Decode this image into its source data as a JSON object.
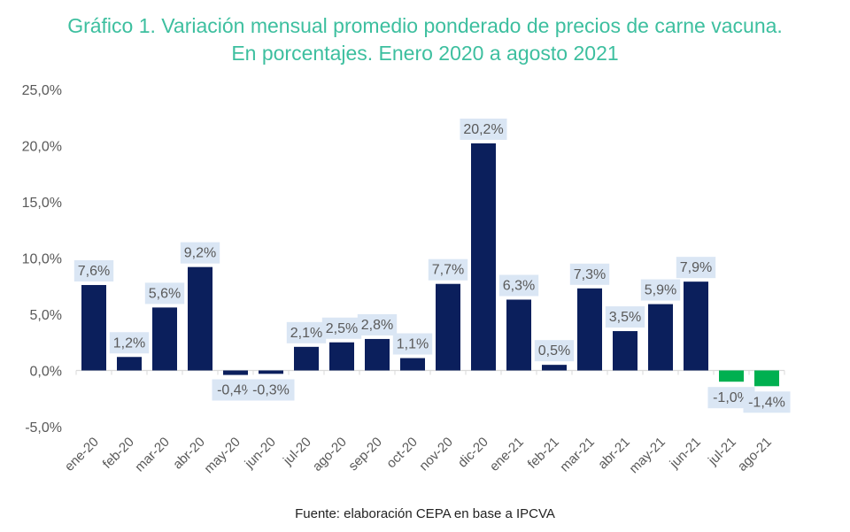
{
  "chart_data": {
    "type": "bar",
    "title": "Gráfico 1. Variación mensual promedio ponderado de precios de carne vacuna.",
    "subtitle": "En porcentajes. Enero 2020 a agosto 2021",
    "source": "Fuente: elaboración CEPA en base a IPCVA",
    "ylim": [
      -5,
      25
    ],
    "yticks": [
      -5,
      0,
      5,
      10,
      15,
      20,
      25
    ],
    "ytick_labels": [
      "-5,0%",
      "0,0%",
      "5,0%",
      "10,0%",
      "15,0%",
      "20,0%",
      "25,0%"
    ],
    "grid": false,
    "categories": [
      "ene-20",
      "feb-20",
      "mar-20",
      "abr-20",
      "may-20",
      "jun-20",
      "jul-20",
      "ago-20",
      "sep-20",
      "oct-20",
      "nov-20",
      "dic-20",
      "ene-21",
      "feb-21",
      "mar-21",
      "abr-21",
      "may-21",
      "jun-21",
      "jul-21",
      "ago-21"
    ],
    "values": [
      7.6,
      1.2,
      5.6,
      9.2,
      -0.4,
      -0.3,
      2.1,
      2.5,
      2.8,
      1.1,
      7.7,
      20.2,
      6.3,
      0.5,
      7.3,
      3.5,
      5.9,
      7.9,
      -1.0,
      -1.4
    ],
    "data_labels": [
      "7,6%",
      "1,2%",
      "5,6%",
      "9,2%",
      "-0,4%",
      "-0,3%",
      "2,1%",
      "2,5%",
      "2,8%",
      "1,1%",
      "7,7%",
      "20,2%",
      "6,3%",
      "0,5%",
      "7,3%",
      "3,5%",
      "5,9%",
      "7,9%",
      "-1,0%",
      "-1,4%"
    ],
    "colors": {
      "bar": "#0b1f5c",
      "bar_highlight": "#00b050",
      "label_bg": "#dae6f4",
      "title": "#3dbf9f",
      "axis_text": "#595959",
      "axis_line": "#d9d9d9"
    },
    "highlighted_categories": [
      "jul-21",
      "ago-21"
    ]
  }
}
